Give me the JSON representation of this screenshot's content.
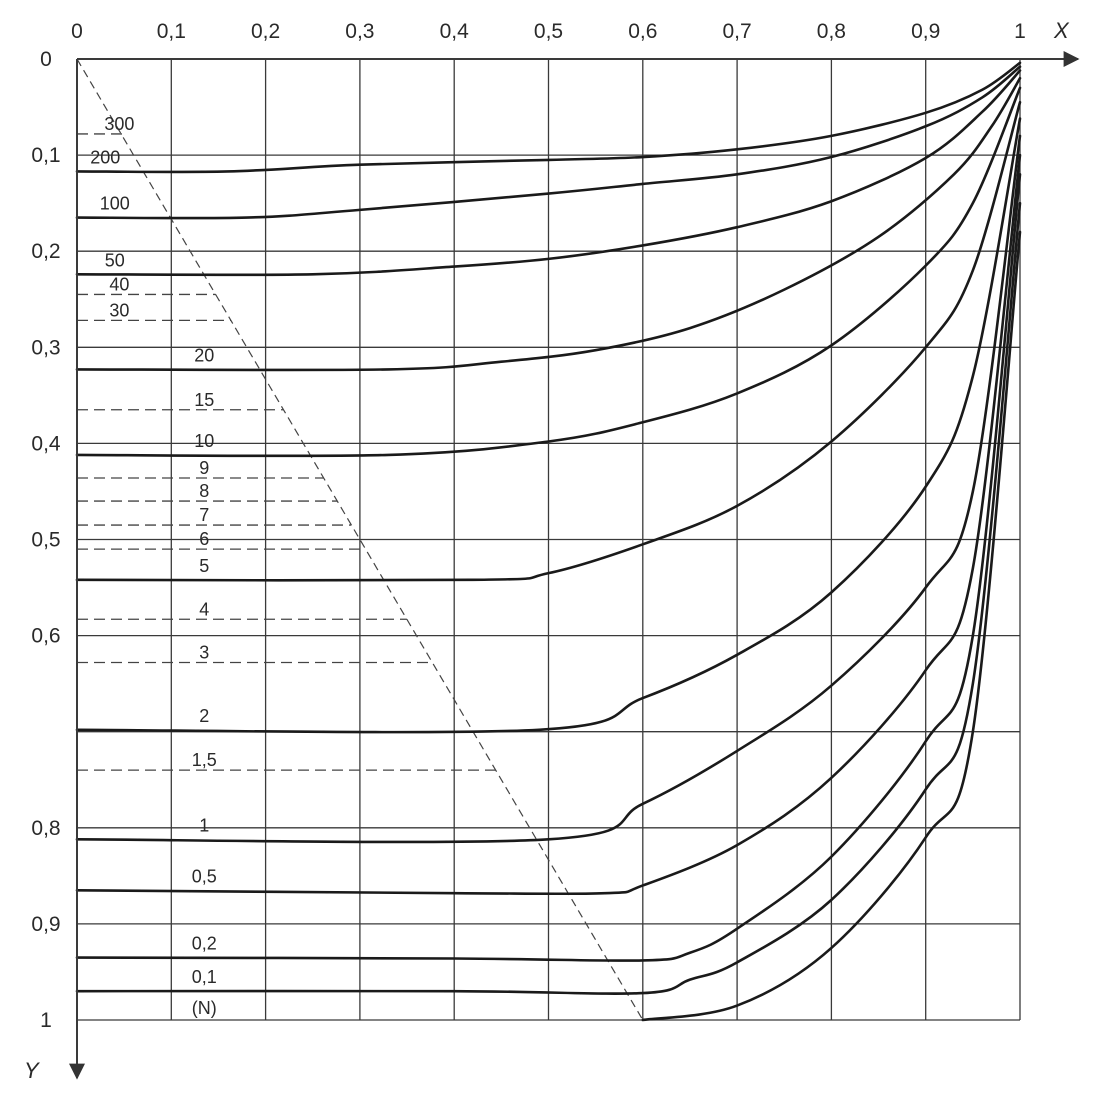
{
  "chart_data": {
    "type": "line",
    "x_axis_label": "X",
    "y_axis_label": "Y",
    "x_ticks": [
      "0",
      "0,1",
      "0,2",
      "0,3",
      "0,4",
      "0,5",
      "0,6",
      "0,7",
      "0,8",
      "0,9",
      "1"
    ],
    "y_ticks": [
      "0",
      "0,1",
      "0,2",
      "0,3",
      "0,4",
      "0,5",
      "0,6",
      "0,8",
      "0,9",
      "1"
    ],
    "y_tick_values": [
      0,
      0.1,
      0.2,
      0.3,
      0.4,
      0.5,
      0.6,
      0.8,
      0.9,
      1.0
    ],
    "xlim": [
      0,
      1
    ],
    "ylim": [
      0,
      1
    ],
    "y_inverted": true,
    "grid": true,
    "grid_step": 0.1,
    "diagonal": {
      "style": "dashed",
      "from": [
        0,
        0
      ],
      "to": [
        0.6,
        1.0
      ]
    },
    "curves": [
      {
        "label": "200",
        "points": [
          [
            0,
            0.117
          ],
          [
            0.16,
            0.117
          ],
          [
            0.3,
            0.11
          ],
          [
            0.5,
            0.105
          ],
          [
            0.6,
            0.102
          ],
          [
            0.7,
            0.094
          ],
          [
            0.8,
            0.08
          ],
          [
            0.9,
            0.056
          ],
          [
            0.96,
            0.032
          ],
          [
            1.0,
            0.004
          ]
        ]
      },
      {
        "label": "100",
        "points": [
          [
            0,
            0.165
          ],
          [
            0.18,
            0.165
          ],
          [
            0.3,
            0.157
          ],
          [
            0.5,
            0.14
          ],
          [
            0.6,
            0.13
          ],
          [
            0.7,
            0.12
          ],
          [
            0.8,
            0.102
          ],
          [
            0.9,
            0.07
          ],
          [
            0.96,
            0.04
          ],
          [
            1.0,
            0.008
          ]
        ]
      },
      {
        "label": "50",
        "points": [
          [
            0,
            0.224
          ],
          [
            0.25,
            0.224
          ],
          [
            0.4,
            0.216
          ],
          [
            0.5,
            0.208
          ],
          [
            0.6,
            0.194
          ],
          [
            0.7,
            0.175
          ],
          [
            0.8,
            0.148
          ],
          [
            0.9,
            0.103
          ],
          [
            0.96,
            0.055
          ],
          [
            1.0,
            0.012
          ]
        ]
      },
      {
        "label": "20",
        "points": [
          [
            0,
            0.323
          ],
          [
            0.33,
            0.323
          ],
          [
            0.45,
            0.315
          ],
          [
            0.55,
            0.303
          ],
          [
            0.65,
            0.28
          ],
          [
            0.75,
            0.24
          ],
          [
            0.85,
            0.185
          ],
          [
            0.93,
            0.12
          ],
          [
            0.97,
            0.07
          ],
          [
            1.0,
            0.02
          ]
        ]
      },
      {
        "label": "10",
        "points": [
          [
            0,
            0.412
          ],
          [
            0.33,
            0.412
          ],
          [
            0.5,
            0.398
          ],
          [
            0.6,
            0.378
          ],
          [
            0.7,
            0.348
          ],
          [
            0.8,
            0.298
          ],
          [
            0.9,
            0.215
          ],
          [
            0.95,
            0.15
          ],
          [
            1.0,
            0.03
          ]
        ]
      },
      {
        "label": "5",
        "points": [
          [
            0,
            0.542
          ],
          [
            0.42,
            0.542
          ],
          [
            0.5,
            0.535
          ],
          [
            0.6,
            0.505
          ],
          [
            0.7,
            0.465
          ],
          [
            0.8,
            0.398
          ],
          [
            0.9,
            0.3
          ],
          [
            0.95,
            0.22
          ],
          [
            1.0,
            0.045
          ]
        ]
      },
      {
        "label": "2",
        "points": [
          [
            0,
            0.698
          ],
          [
            0.49,
            0.698
          ],
          [
            0.6,
            0.665
          ],
          [
            0.7,
            0.62
          ],
          [
            0.8,
            0.555
          ],
          [
            0.9,
            0.445
          ],
          [
            0.95,
            0.33
          ],
          [
            1.0,
            0.062
          ]
        ]
      },
      {
        "label": "1",
        "points": [
          [
            0,
            0.812
          ],
          [
            0.5,
            0.812
          ],
          [
            0.6,
            0.775
          ],
          [
            0.7,
            0.72
          ],
          [
            0.8,
            0.652
          ],
          [
            0.9,
            0.55
          ],
          [
            0.95,
            0.45
          ],
          [
            1.0,
            0.08
          ]
        ]
      },
      {
        "label": "0,5",
        "points": [
          [
            0,
            0.865
          ],
          [
            0.4,
            0.868
          ],
          [
            0.56,
            0.868
          ],
          [
            0.6,
            0.86
          ],
          [
            0.7,
            0.818
          ],
          [
            0.8,
            0.748
          ],
          [
            0.9,
            0.636
          ],
          [
            0.95,
            0.53
          ],
          [
            1.0,
            0.1
          ]
        ]
      },
      {
        "label": "0,2",
        "points": [
          [
            0,
            0.935
          ],
          [
            0.4,
            0.936
          ],
          [
            0.6,
            0.938
          ],
          [
            0.65,
            0.93
          ],
          [
            0.7,
            0.905
          ],
          [
            0.8,
            0.83
          ],
          [
            0.9,
            0.71
          ],
          [
            0.95,
            0.6
          ],
          [
            1.0,
            0.12
          ]
        ]
      },
      {
        "label": "0,1",
        "points": [
          [
            0,
            0.97
          ],
          [
            0.4,
            0.97
          ],
          [
            0.6,
            0.972
          ],
          [
            0.65,
            0.958
          ],
          [
            0.7,
            0.94
          ],
          [
            0.8,
            0.875
          ],
          [
            0.9,
            0.76
          ],
          [
            0.95,
            0.65
          ],
          [
            1.0,
            0.15
          ]
        ]
      },
      {
        "label": "(N)",
        "points": [
          [
            0.6,
            1.0
          ],
          [
            0.7,
            0.985
          ],
          [
            0.8,
            0.925
          ],
          [
            0.9,
            0.81
          ],
          [
            0.95,
            0.7
          ],
          [
            1.0,
            0.18
          ]
        ]
      }
    ],
    "dashed_levels": [
      {
        "label": "300",
        "y": 0.078
      },
      {
        "label": "40",
        "y": 0.245
      },
      {
        "label": "30",
        "y": 0.272
      },
      {
        "label": "15",
        "y": 0.365
      },
      {
        "label": "9",
        "y": 0.436
      },
      {
        "label": "8",
        "y": 0.46
      },
      {
        "label": "7",
        "y": 0.485
      },
      {
        "label": "6",
        "y": 0.51
      },
      {
        "label": "4",
        "y": 0.583
      },
      {
        "label": "3",
        "y": 0.628
      },
      {
        "label": "1,5",
        "y": 0.74
      }
    ]
  }
}
